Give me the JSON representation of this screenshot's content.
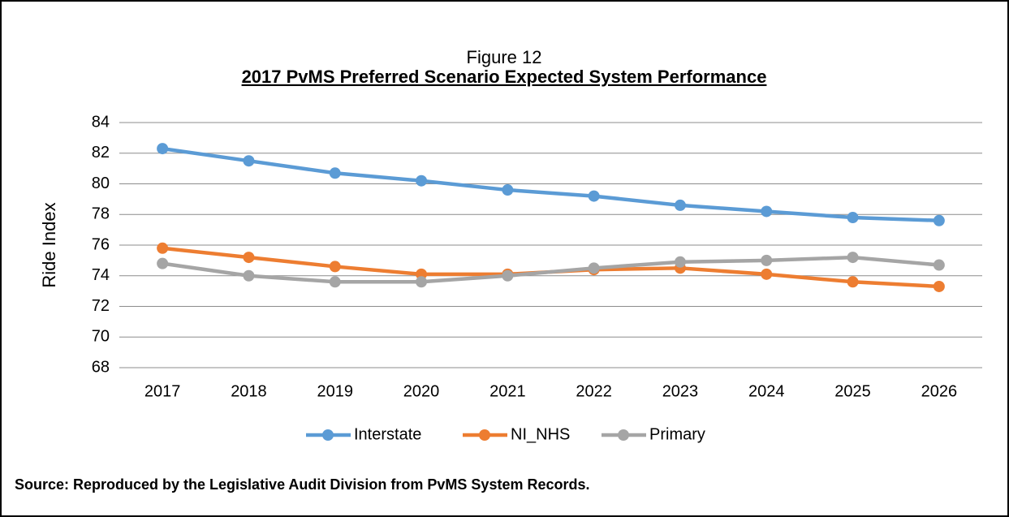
{
  "chart_data": {
    "type": "line",
    "figure_label": "Figure 12",
    "title": "2017 PvMS Preferred Scenario Expected System Performance",
    "y_label": "Ride Index",
    "source": "Source: Reproduced by the Legislative Audit Division from PvMS System Records.",
    "categories": [
      "2017",
      "2018",
      "2019",
      "2020",
      "2021",
      "2022",
      "2023",
      "2024",
      "2025",
      "2026"
    ],
    "series": [
      {
        "name": "Interstate",
        "color": "#5b9bd5",
        "values": [
          82.3,
          81.5,
          80.7,
          80.2,
          79.6,
          79.2,
          78.6,
          78.2,
          77.8,
          77.6
        ]
      },
      {
        "name": "NI_NHS",
        "color": "#ed7d31",
        "values": [
          75.8,
          75.2,
          74.6,
          74.1,
          74.1,
          74.4,
          74.5,
          74.1,
          73.6,
          73.3
        ]
      },
      {
        "name": "Primary",
        "color": "#a5a5a5",
        "values": [
          74.8,
          74.0,
          73.6,
          73.6,
          74.0,
          74.5,
          74.9,
          75.0,
          75.2,
          74.7
        ]
      }
    ],
    "ylim": [
      68,
      84
    ],
    "yticks": [
      68,
      70,
      72,
      74,
      76,
      78,
      80,
      82,
      84
    ],
    "grid": true,
    "legend": "bottom"
  }
}
